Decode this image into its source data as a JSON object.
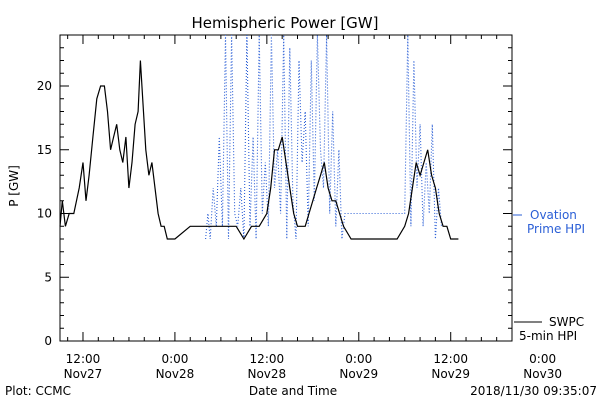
{
  "chart_data": {
    "type": "line",
    "title": "Hemispheric Power [GW]",
    "ylabel": "P [GW]",
    "xlabel": "Date and Time",
    "ylim": [
      0,
      24
    ],
    "xlim_hours": [
      -15,
      44
    ],
    "yticks": [
      0,
      5,
      10,
      15,
      20
    ],
    "xticks": [
      {
        "x": -12,
        "top": "12:00",
        "bottom": "Nov27"
      },
      {
        "x": 0,
        "top": "0:00",
        "bottom": "Nov28"
      },
      {
        "x": 12,
        "top": "12:00",
        "bottom": "Nov28"
      },
      {
        "x": 24,
        "top": "0:00",
        "bottom": "Nov29"
      },
      {
        "x": 36,
        "top": "12:00",
        "bottom": "Nov29"
      },
      {
        "x": 48,
        "top": "0:00",
        "bottom": "Nov30"
      }
    ],
    "series": [
      {
        "name": "SWPC 5-min HPI",
        "color": "#000000",
        "style": "solid",
        "points": [
          [
            -15,
            9
          ],
          [
            -14.7,
            11
          ],
          [
            -14.3,
            9
          ],
          [
            -13.8,
            10
          ],
          [
            -13.2,
            10
          ],
          [
            -12.5,
            12
          ],
          [
            -12,
            14
          ],
          [
            -11.6,
            11
          ],
          [
            -11.2,
            13
          ],
          [
            -10.7,
            16
          ],
          [
            -10.2,
            19
          ],
          [
            -9.7,
            20
          ],
          [
            -9.2,
            20
          ],
          [
            -8.8,
            18
          ],
          [
            -8.4,
            15
          ],
          [
            -8,
            16
          ],
          [
            -7.6,
            17
          ],
          [
            -7.2,
            15
          ],
          [
            -6.8,
            14
          ],
          [
            -6.4,
            16
          ],
          [
            -6,
            12
          ],
          [
            -5.6,
            14
          ],
          [
            -5.2,
            17
          ],
          [
            -4.8,
            18
          ],
          [
            -4.5,
            22
          ],
          [
            -4.2,
            19
          ],
          [
            -3.8,
            15
          ],
          [
            -3.4,
            13
          ],
          [
            -3,
            14
          ],
          [
            -2.6,
            12
          ],
          [
            -2.2,
            10
          ],
          [
            -1.8,
            9
          ],
          [
            -1.4,
            9
          ],
          [
            -1,
            8
          ],
          [
            0,
            8
          ],
          [
            2,
            9
          ],
          [
            4,
            9
          ],
          [
            6,
            9
          ],
          [
            8,
            9
          ],
          [
            9,
            8
          ],
          [
            10,
            9
          ],
          [
            11,
            9
          ],
          [
            12,
            10
          ],
          [
            12.5,
            12
          ],
          [
            13,
            15
          ],
          [
            13.5,
            15
          ],
          [
            14,
            16
          ],
          [
            14.5,
            14
          ],
          [
            15,
            12
          ],
          [
            15.5,
            10
          ],
          [
            16,
            9
          ],
          [
            17,
            9
          ],
          [
            17.5,
            10
          ],
          [
            18,
            11
          ],
          [
            18.5,
            12
          ],
          [
            19,
            13
          ],
          [
            19.5,
            14
          ],
          [
            20,
            12
          ],
          [
            20.5,
            11
          ],
          [
            21,
            11
          ],
          [
            21.5,
            10
          ],
          [
            22,
            9
          ],
          [
            23,
            8
          ],
          [
            26,
            8
          ],
          [
            29,
            8
          ],
          [
            30,
            9
          ],
          [
            30.5,
            10
          ],
          [
            31,
            12
          ],
          [
            31.5,
            14
          ],
          [
            32,
            13
          ],
          [
            32.5,
            14
          ],
          [
            33,
            15
          ],
          [
            33.5,
            13
          ],
          [
            34,
            12
          ],
          [
            34.5,
            10
          ],
          [
            35,
            9
          ],
          [
            35.5,
            9
          ],
          [
            36,
            8
          ],
          [
            37,
            8
          ]
        ]
      },
      {
        "name": "Ovation Prime HPI",
        "color": "#2b5fd6",
        "style": "dotted",
        "points": [
          [
            4,
            8
          ],
          [
            4.3,
            10
          ],
          [
            4.6,
            8
          ],
          [
            5,
            12
          ],
          [
            5.4,
            9
          ],
          [
            5.8,
            16
          ],
          [
            6.2,
            9
          ],
          [
            6.6,
            24
          ],
          [
            7,
            8
          ],
          [
            7.4,
            24
          ],
          [
            7.8,
            10
          ],
          [
            8.2,
            9
          ],
          [
            8.6,
            12
          ],
          [
            9,
            8
          ],
          [
            9.4,
            24
          ],
          [
            9.8,
            9
          ],
          [
            10.2,
            16
          ],
          [
            10.6,
            8
          ],
          [
            11,
            24
          ],
          [
            11.4,
            10
          ],
          [
            11.8,
            14
          ],
          [
            12.2,
            9
          ],
          [
            12.6,
            24
          ],
          [
            13,
            12
          ],
          [
            13.4,
            15
          ],
          [
            13.8,
            10
          ],
          [
            14.2,
            24
          ],
          [
            14.6,
            8
          ],
          [
            15,
            23
          ],
          [
            15.4,
            11
          ],
          [
            15.8,
            8
          ],
          [
            16.2,
            22
          ],
          [
            16.6,
            14
          ],
          [
            17,
            18
          ],
          [
            17.4,
            9
          ],
          [
            17.8,
            22
          ],
          [
            18.2,
            11
          ],
          [
            18.6,
            24
          ],
          [
            19,
            15
          ],
          [
            19.4,
            12
          ],
          [
            19.8,
            24
          ],
          [
            20.2,
            10
          ],
          [
            20.6,
            18
          ],
          [
            21,
            9
          ],
          [
            21.4,
            15
          ],
          [
            21.8,
            8
          ],
          [
            22.2,
            10
          ],
          [
            30,
            10
          ],
          [
            30.4,
            24
          ],
          [
            30.8,
            9
          ],
          [
            31.2,
            22
          ],
          [
            31.6,
            12
          ],
          [
            32,
            17
          ],
          [
            32.4,
            9
          ],
          [
            32.8,
            14
          ],
          [
            33.2,
            10
          ],
          [
            33.6,
            17
          ],
          [
            34,
            8
          ],
          [
            34.4,
            12
          ],
          [
            34.8,
            9
          ]
        ]
      }
    ],
    "legend": [
      {
        "series": "Ovation Prime HPI",
        "line1": "Ovation",
        "line2": "Prime HPI",
        "color": "#2b5fd6"
      },
      {
        "series": "SWPC 5-min HPI",
        "line1": "SWPC",
        "line2": "5-min HPI",
        "color": "#000000"
      }
    ]
  },
  "footer": {
    "plot_label": "Plot: CCMC",
    "timestamp": "2018/11/30 09:35:07"
  }
}
